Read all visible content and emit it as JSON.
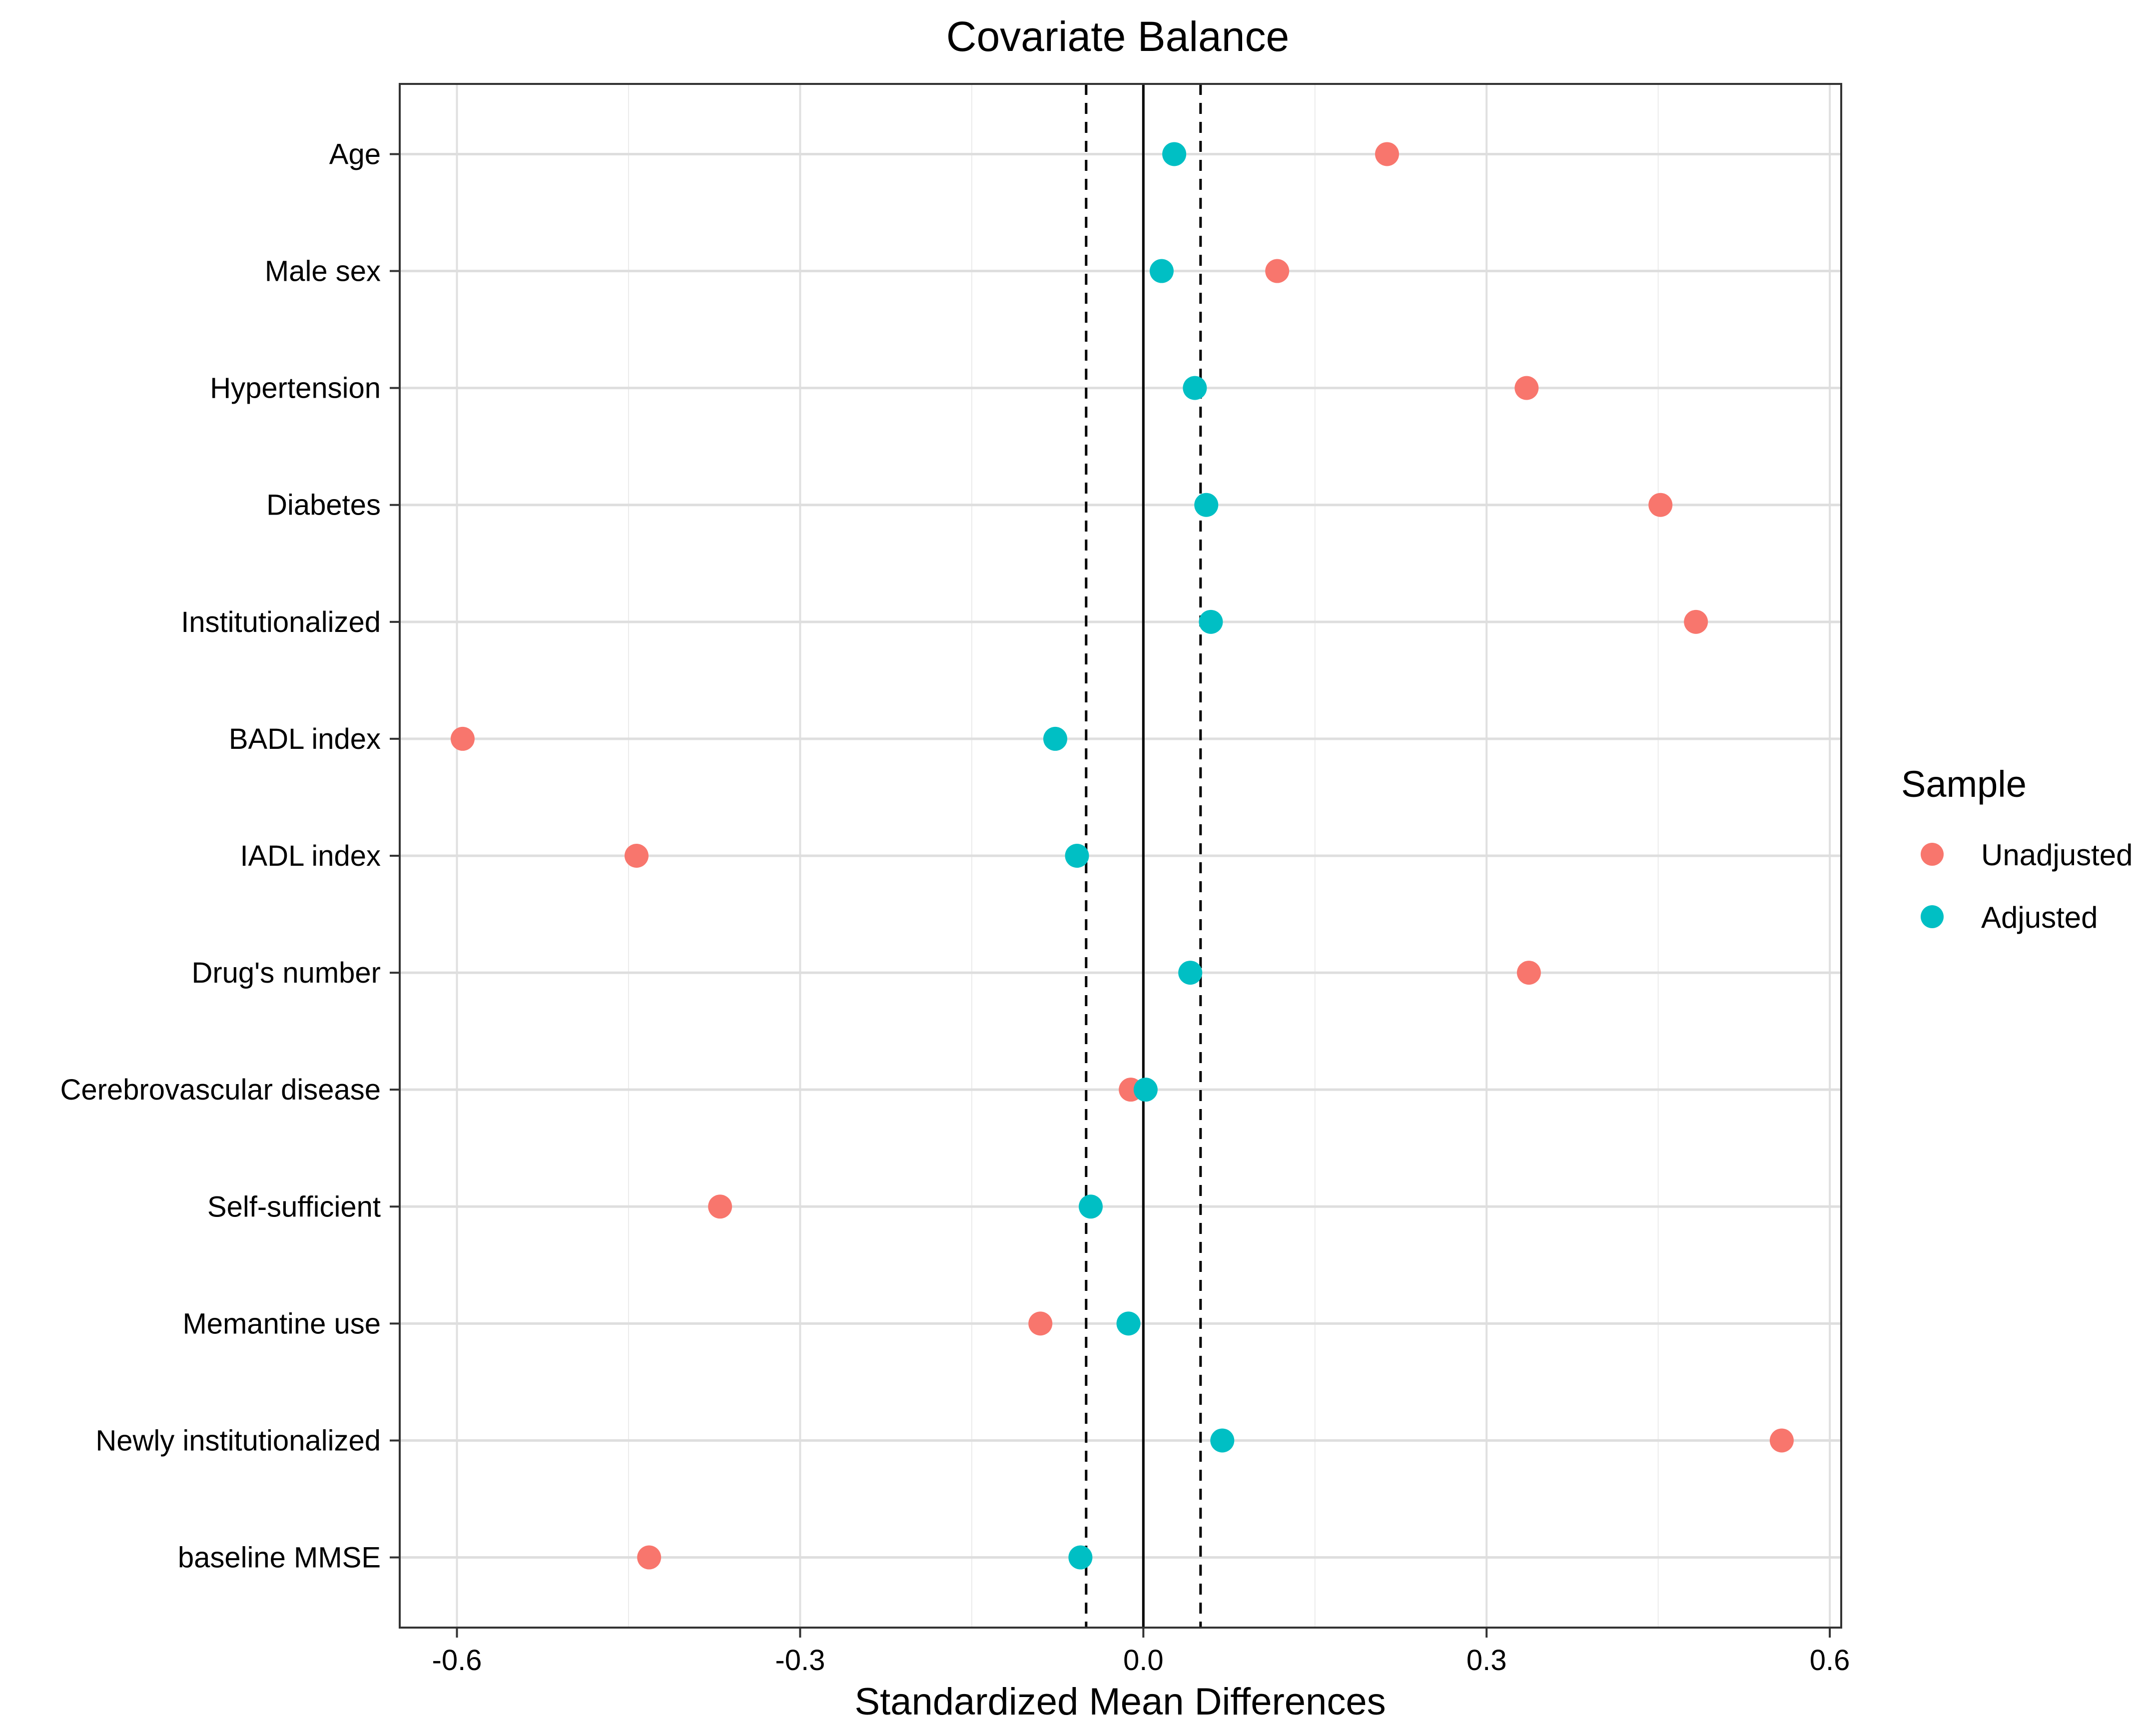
{
  "chart_data": {
    "type": "scatter",
    "title": "Covariate Balance",
    "xlabel": "Standardized Mean Differences",
    "ylabel": "",
    "xlim": [
      -0.65,
      0.61
    ],
    "xticks": [
      -0.6,
      -0.3,
      0.0,
      0.3,
      0.6
    ],
    "xtick_labels": [
      "-0.6",
      "-0.3",
      "0.0",
      "0.3",
      "0.6"
    ],
    "grid": true,
    "reference_lines": {
      "solid": [
        0.0
      ],
      "dashed": [
        -0.05,
        0.05
      ]
    },
    "categories": [
      "Age",
      "Male sex",
      "Hypertension",
      "Diabetes",
      "Institutionalized",
      "BADL index",
      "IADL index",
      "Drug's number",
      "Cerebrovascular disease",
      "Self-sufficient",
      "Memantine use",
      "Newly institutionalized",
      "baseline MMSE"
    ],
    "series": [
      {
        "name": "Unadjusted",
        "color": "#F8766D",
        "values": [
          0.213,
          0.117,
          0.335,
          0.452,
          0.483,
          -0.595,
          -0.443,
          0.337,
          -0.011,
          -0.37,
          -0.09,
          0.558,
          -0.432
        ]
      },
      {
        "name": "Adjusted",
        "color": "#00BFC4",
        "values": [
          0.027,
          0.016,
          0.045,
          0.055,
          0.059,
          -0.077,
          -0.058,
          0.041,
          0.002,
          -0.046,
          -0.013,
          0.069,
          -0.055
        ]
      }
    ],
    "legend": {
      "title": "Sample",
      "position": "right",
      "labels": [
        "Unadjusted",
        "Adjusted"
      ]
    }
  }
}
